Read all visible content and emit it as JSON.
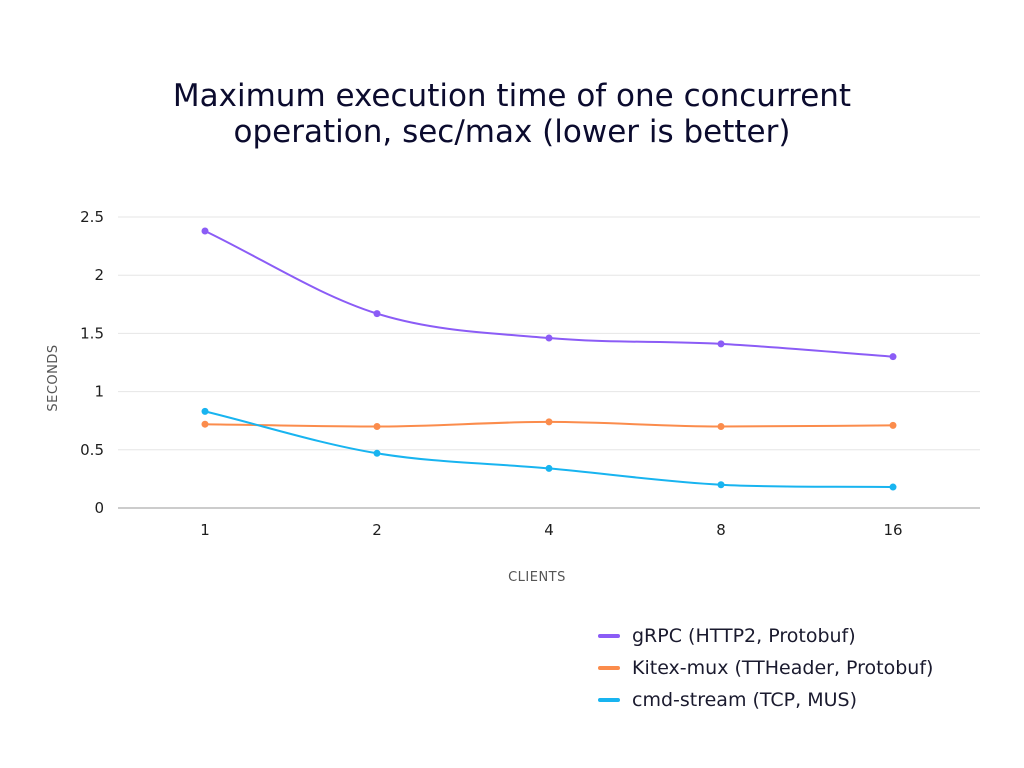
{
  "chart_data": {
    "type": "line",
    "title_lines": [
      "Maximum execution time of one concurrent",
      "operation, sec/max (lower is better)"
    ],
    "xlabel": "CLIENTS",
    "ylabel": "SECONDS",
    "categories": [
      "1",
      "2",
      "4",
      "8",
      "16"
    ],
    "ylim": [
      0,
      2.5
    ],
    "yticks": [
      0,
      0.5,
      1,
      1.5,
      2,
      2.5
    ],
    "ytick_labels": [
      "0",
      "0.5",
      "1",
      "1.5",
      "2",
      "2.5"
    ],
    "grid": true,
    "legend_position": "bottom-right",
    "series": [
      {
        "name": "gRPC (HTTP2, Protobuf)",
        "color": "#8b5cf6",
        "values": [
          2.38,
          1.67,
          1.46,
          1.41,
          1.3
        ]
      },
      {
        "name": "Kitex-mux (TTHeader, Protobuf)",
        "color": "#fb8c4c",
        "values": [
          0.72,
          0.7,
          0.74,
          0.7,
          0.71
        ]
      },
      {
        "name": "cmd-stream (TCP, MUS)",
        "color": "#18b4f0",
        "values": [
          0.83,
          0.47,
          0.34,
          0.2,
          0.18
        ]
      }
    ]
  }
}
